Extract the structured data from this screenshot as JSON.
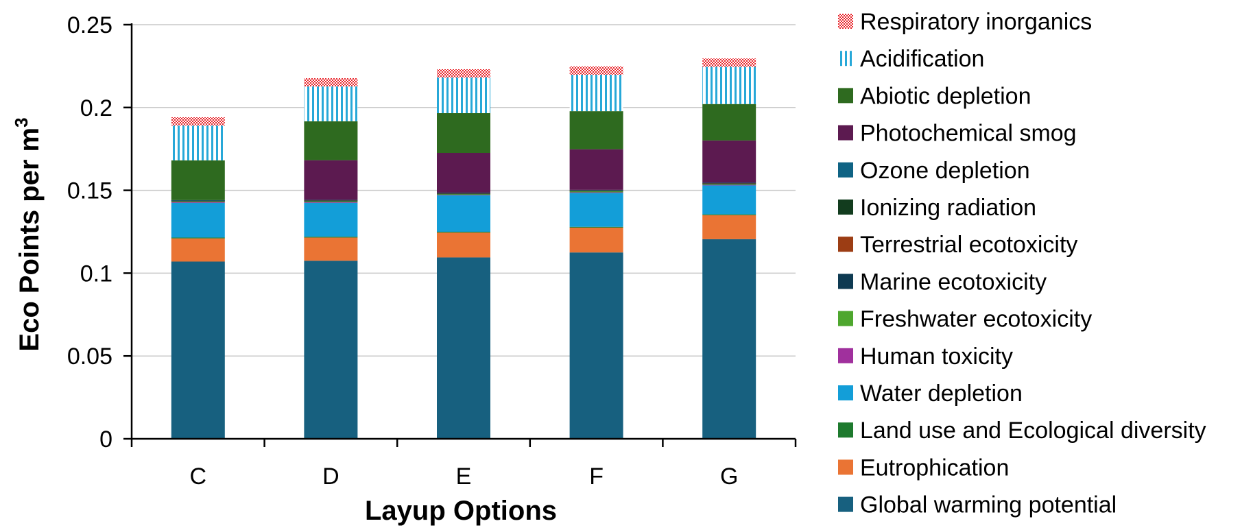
{
  "chart_data": {
    "type": "bar",
    "stacked": true,
    "title": "",
    "xlabel": "Layup Options",
    "ylabel_main": "Eco Points per m",
    "ylabel_sup": "3",
    "ylim": [
      0,
      0.25
    ],
    "yticks": [
      "0",
      "0.05",
      "0.1",
      "0.15",
      "0.2",
      "0.25"
    ],
    "grid": true,
    "legend_position": "right",
    "categories": [
      "C",
      "D",
      "E",
      "F",
      "G"
    ],
    "series": [
      {
        "name": "Global warming potential",
        "color": "#17607f",
        "pattern": "solid",
        "values": [
          0.107,
          0.1075,
          0.1095,
          0.1125,
          0.1205
        ]
      },
      {
        "name": "Eutrophication",
        "color": "#ea7434",
        "pattern": "solid",
        "values": [
          0.014,
          0.014,
          0.015,
          0.015,
          0.0145
        ]
      },
      {
        "name": "Land use and Ecological diversity",
        "color": "#1e7a2e",
        "pattern": "solid",
        "values": [
          0.0005,
          0.0005,
          0.0005,
          0.0005,
          0.0005
        ]
      },
      {
        "name": "Water depletion",
        "color": "#139ed8",
        "pattern": "solid",
        "values": [
          0.021,
          0.0205,
          0.022,
          0.0205,
          0.0175
        ]
      },
      {
        "name": "Human toxicity",
        "color": "#a0309d",
        "pattern": "solid",
        "values": [
          0.0003,
          0.0003,
          0.0003,
          0.0003,
          0.0003
        ]
      },
      {
        "name": "Freshwater ecotoxicity",
        "color": "#4ea72e",
        "pattern": "solid",
        "values": [
          0.0005,
          0.0006,
          0.0005,
          0.0007,
          0.0005
        ]
      },
      {
        "name": "Marine ecotoxicity",
        "color": "#0e3a52",
        "pattern": "solid",
        "values": [
          0.0002,
          0.0002,
          0.0002,
          0.0002,
          0.0002
        ]
      },
      {
        "name": "Terrestrial ecotoxicity",
        "color": "#9c3d14",
        "pattern": "solid",
        "values": [
          0.0003,
          0.0003,
          0.0003,
          0.0003,
          0.0003
        ]
      },
      {
        "name": "Ionizing radiation",
        "color": "#123c1e",
        "pattern": "solid",
        "values": [
          0.0002,
          0.0002,
          0.0002,
          0.0002,
          0.0002
        ]
      },
      {
        "name": "Ozone depletion",
        "color": "#0f6384",
        "pattern": "solid",
        "values": [
          0.0001,
          0.0001,
          0.0001,
          0.0001,
          0.0001
        ]
      },
      {
        "name": "Photochemical smog",
        "color": "#5c1a50",
        "pattern": "solid",
        "values": [
          0.0,
          0.024,
          0.024,
          0.0245,
          0.0255
        ]
      },
      {
        "name": "Abiotic depletion",
        "color": "#2e6a1f",
        "pattern": "solid",
        "values": [
          0.024,
          0.0235,
          0.024,
          0.023,
          0.022
        ]
      },
      {
        "name": "Acidification",
        "color": "#27a8d8",
        "pattern": "vstripes",
        "values": [
          0.021,
          0.021,
          0.0215,
          0.022,
          0.0225
        ]
      },
      {
        "name": "Respiratory inorganics",
        "color": "#e8242a",
        "pattern": "checker",
        "values": [
          0.005,
          0.005,
          0.005,
          0.005,
          0.005
        ]
      }
    ],
    "legend_order": [
      "Respiratory inorganics",
      "Acidification",
      "Abiotic depletion",
      "Photochemical smog",
      "Ozone depletion",
      "Ionizing radiation",
      "Terrestrial ecotoxicity",
      "Marine ecotoxicity",
      "Freshwater ecotoxicity",
      "Human toxicity",
      "Water depletion",
      "Land use and Ecological diversity",
      "Eutrophication",
      "Global warming potential"
    ]
  }
}
